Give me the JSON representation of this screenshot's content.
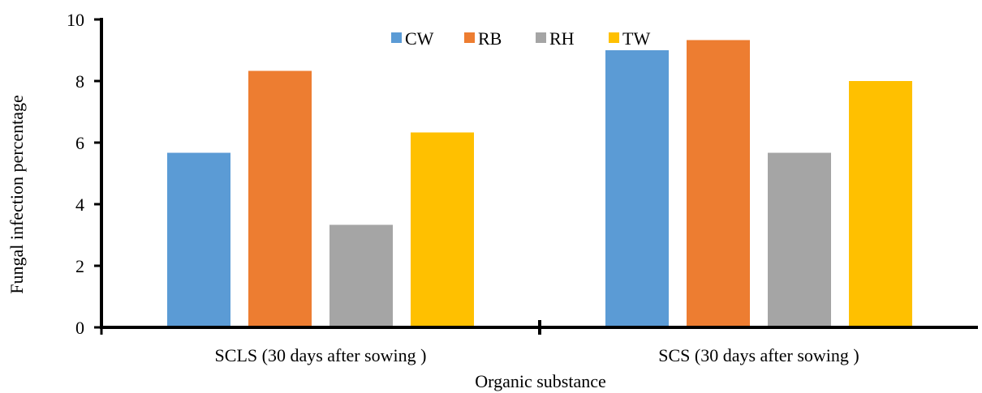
{
  "chart_data": {
    "type": "bar",
    "categories": [
      "SCLS (30 days after sowing )",
      "SCS (30 days after sowing )"
    ],
    "series": [
      {
        "name": "CW",
        "color": "#5b9bd5",
        "values": [
          5.67,
          9.0
        ]
      },
      {
        "name": "RB",
        "color": "#ed7d31",
        "values": [
          8.33,
          9.33
        ]
      },
      {
        "name": "RH",
        "color": "#a5a5a5",
        "values": [
          3.33,
          5.67
        ]
      },
      {
        "name": "TW",
        "color": "#ffc000",
        "values": [
          6.33,
          8.0
        ]
      }
    ],
    "title": "",
    "xlabel": "Organic substance",
    "ylabel": "Fungal infection percentage",
    "ylim": [
      0,
      10
    ],
    "yticks": [
      "0",
      "2",
      "4",
      "6",
      "8",
      "10"
    ],
    "grid": false,
    "legend_position": "top-center"
  }
}
